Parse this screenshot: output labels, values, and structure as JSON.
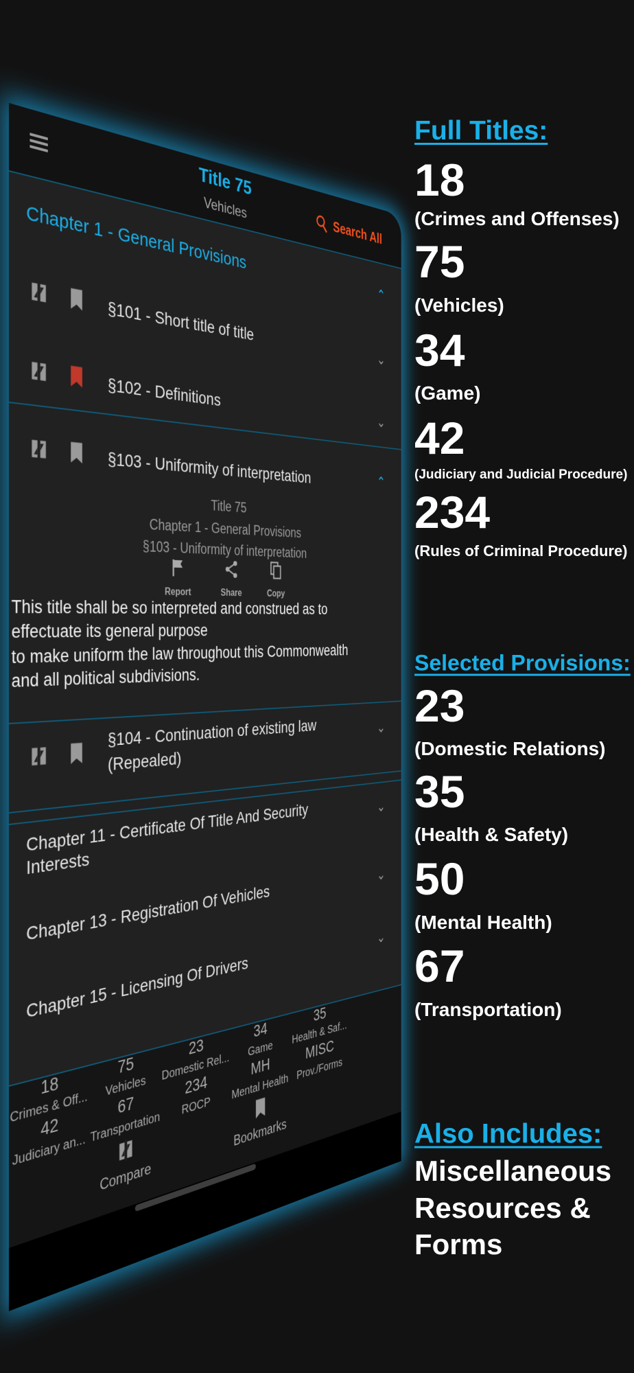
{
  "colors": {
    "accent": "#1ab0e8",
    "search": "#f4511e",
    "bookmarked": "#c0392b",
    "background": "#121212",
    "panel": "#212121"
  },
  "phone": {
    "header": {
      "title": "Title 75",
      "subtitle": "Vehicles",
      "search_label": "Search All",
      "menu_icon": "hamburger-icon",
      "search_icon": "search-icon"
    },
    "chapter1": {
      "label": "Chapter 1 - General Provisions",
      "expanded": true
    },
    "sections": [
      {
        "label": "§101 - Short title of title",
        "bookmarked": false
      },
      {
        "label": "§102 - Definitions",
        "bookmarked": true
      },
      {
        "label": "§103 - Uniformity of interpretation",
        "bookmarked": false,
        "expanded": true
      },
      {
        "label": "§104 - Continuation of existing law",
        "label2": "(Repealed)",
        "bookmarked": false
      }
    ],
    "detail": {
      "title": "Title 75",
      "chapter": "Chapter 1 - General Provisions",
      "section": "§103 - Uniformity of interpretation",
      "actions": [
        {
          "label": "Report",
          "icon": "flag-icon"
        },
        {
          "label": "Share",
          "icon": "share-icon"
        },
        {
          "label": "Copy",
          "icon": "copy-icon"
        }
      ],
      "body_lines": [
        "This title shall be so interpreted and construed as to",
        "effectuate its general purpose",
        "to make uniform the law throughout this Commonwealth",
        "and all political subdivisions."
      ]
    },
    "chapters": [
      {
        "line1": "Chapter 11 - Certificate Of Title And Security",
        "line2": "Interests"
      },
      {
        "line1": "Chapter 13 - Registration Of Vehicles"
      },
      {
        "line1": "Chapter 15 - Licensing Of Drivers"
      }
    ],
    "tabbar": {
      "columns": [
        [
          {
            "num": "18",
            "label": "Crimes & Off..."
          },
          {
            "num": "42",
            "label": "Judiciary an..."
          }
        ],
        [
          {
            "num": "75",
            "label": "Vehicles",
            "active": true
          },
          {
            "num": "67",
            "label": "Transportation"
          }
        ],
        [
          {
            "num": "23",
            "label": "Domestic Rel..."
          },
          {
            "num": "234",
            "label": "ROCP"
          }
        ],
        [
          {
            "num": "34",
            "label": "Game"
          },
          {
            "num": "MH",
            "label": "Mental Health"
          }
        ],
        [
          {
            "num": "35",
            "label": "Health & Saf..."
          },
          {
            "num": "MISC",
            "label": "Prov./Forms"
          }
        ]
      ],
      "compare_label": "Compare",
      "bookmarks_label": "Bookmarks"
    }
  },
  "promo": {
    "full_titles_heading": "Full Titles:",
    "full_titles": [
      {
        "num": "18",
        "name": "(Crimes and Offenses)"
      },
      {
        "num": "75",
        "name": "(Vehicles)"
      },
      {
        "num": "34",
        "name": "(Game)"
      },
      {
        "num": "42",
        "name": "(Judiciary and Judicial Procedure)"
      },
      {
        "num": "234",
        "name": "(Rules of Criminal Procedure)"
      }
    ],
    "selected_heading": "Selected Provisions:",
    "selected": [
      {
        "num": "23",
        "name": "(Domestic Relations)"
      },
      {
        "num": "35",
        "name": "(Health & Safety)"
      },
      {
        "num": "50",
        "name": "(Mental Health)"
      },
      {
        "num": "67",
        "name": "(Transportation)"
      }
    ],
    "also_heading": "Also Includes:",
    "also_lines": [
      "Miscellaneous",
      "Resources &",
      "Forms"
    ]
  }
}
